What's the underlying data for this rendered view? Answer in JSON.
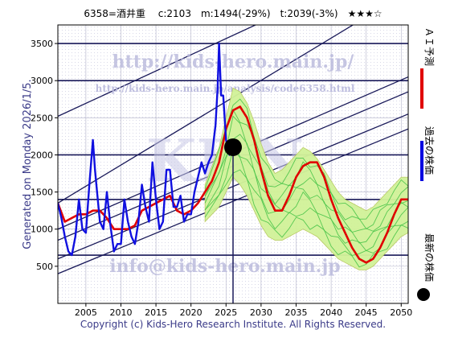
{
  "header": {
    "title": "6358=酒井重　 c:2103　m:1494(-29%)　t:2039(-3%)　★★★☆"
  },
  "watermarks": {
    "url_big": "http://kids-hero.main.jp/",
    "url_small": "http://kids-hero.main.jp/analysis/code6358.html",
    "big": "KHN",
    "email": "info@kids-hero.main.jp"
  },
  "side_label": "Generated on Monday 2026/1/5.",
  "copyright": "Copyright (c) Kids-Hero Research Institute. All Rights Reserved.",
  "legend": {
    "items": [
      {
        "label": "ＡＩ予測",
        "color": "#e00000"
      },
      {
        "label": "過去の株価",
        "color": "#0000e0"
      },
      {
        "label": "最新の株価",
        "color": "#000000"
      }
    ]
  },
  "colors": {
    "price": "#1010e0",
    "forecast": "#e00000",
    "band_fill": "#ffffb0",
    "ensemble": "#40c040",
    "channel": "#1a1a5a"
  },
  "chart_data": {
    "type": "line",
    "xlim": [
      2001,
      2051
    ],
    "ylim": [
      0,
      3750
    ],
    "x_ticks": [
      2005,
      2010,
      2015,
      2020,
      2025,
      2030,
      2035,
      2040,
      2045,
      2050
    ],
    "x_tick_labels": [
      "2005",
      "2010",
      "2015",
      "2020",
      "2025",
      "2030",
      "2035",
      "2040",
      "2045",
      "2050"
    ],
    "y_ticks": [
      500,
      1000,
      1500,
      2000,
      2500,
      3000,
      3500
    ],
    "y_tick_labels": [
      "500",
      "1000",
      "1500",
      "2000",
      "2500",
      "3000",
      "3500"
    ],
    "grid": true,
    "latest_point": {
      "x": 2026.0,
      "y": 2103
    },
    "horizontal_lines": [
      650,
      1400,
      2000,
      3000,
      3500
    ],
    "channel_lines": [
      {
        "x1": 2001,
        "y1": 400,
        "x2": 2051,
        "y2": 2350
      },
      {
        "x1": 2001,
        "y1": 600,
        "x2": 2051,
        "y2": 2550
      },
      {
        "x1": 2001,
        "y1": 850,
        "x2": 2051,
        "y2": 2850
      },
      {
        "x1": 2001,
        "y1": 1000,
        "x2": 2051,
        "y2": 3050
      },
      {
        "x1": 2001,
        "y1": 1350,
        "x2": 2051,
        "y2": 4200
      },
      {
        "x1": 2001,
        "y1": 2520,
        "x2": 2051,
        "y2": 4700
      }
    ],
    "series": [
      {
        "name": "過去の株価",
        "x": [
          2001.0,
          2001.5,
          2002.0,
          2002.5,
          2003.0,
          2003.5,
          2004.0,
          2004.5,
          2005.0,
          2005.5,
          2006.0,
          2006.3,
          2006.6,
          2007.0,
          2007.5,
          2008.0,
          2008.5,
          2009.0,
          2009.5,
          2010.0,
          2010.5,
          2011.0,
          2011.5,
          2012.0,
          2012.5,
          2013.0,
          2013.5,
          2014.0,
          2014.5,
          2015.0,
          2015.5,
          2016.0,
          2016.5,
          2017.0,
          2017.5,
          2018.0,
          2018.5,
          2019.0,
          2019.5,
          2020.0,
          2020.5,
          2021.0,
          2021.5,
          2022.0,
          2022.5,
          2023.0,
          2023.5,
          2023.8,
          2024.0,
          2024.3,
          2024.6,
          2025.0,
          2025.5,
          2026.0
        ],
        "y": [
          1350,
          1150,
          900,
          700,
          650,
          900,
          1400,
          1000,
          950,
          1600,
          2200,
          1800,
          1500,
          1100,
          1000,
          1500,
          1050,
          700,
          800,
          800,
          1400,
          1100,
          900,
          800,
          1100,
          1600,
          1300,
          1100,
          1900,
          1400,
          1000,
          1100,
          1800,
          1800,
          1300,
          1300,
          1450,
          1100,
          1200,
          1200,
          1500,
          1700,
          1900,
          1750,
          1900,
          2000,
          2400,
          2900,
          3500,
          2800,
          2800,
          2200,
          2000,
          2103
        ]
      },
      {
        "name": "ＡＩ予測",
        "x": [
          2001.0,
          2002.0,
          2003.0,
          2004.0,
          2005.0,
          2006.0,
          2007.0,
          2008.0,
          2009.0,
          2010.0,
          2011.0,
          2012.0,
          2013.0,
          2014.0,
          2015.0,
          2016.0,
          2017.0,
          2018.0,
          2019.0,
          2020.0,
          2021.0,
          2022.0,
          2023.0,
          2024.0,
          2025.0,
          2026.0,
          2027.0,
          2028.0,
          2029.0,
          2030.0,
          2031.0,
          2032.0,
          2033.0,
          2034.0,
          2035.0,
          2036.0,
          2037.0,
          2038.0,
          2039.0,
          2040.0,
          2041.0,
          2042.0,
          2043.0,
          2044.0,
          2045.0,
          2046.0,
          2047.0,
          2048.0,
          2049.0,
          2050.0,
          2051.0
        ],
        "y": [
          1350,
          1100,
          1150,
          1200,
          1200,
          1250,
          1250,
          1150,
          1000,
          1000,
          1000,
          1050,
          1250,
          1300,
          1350,
          1400,
          1450,
          1250,
          1200,
          1250,
          1350,
          1500,
          1650,
          1900,
          2350,
          2600,
          2650,
          2500,
          2200,
          1800,
          1450,
          1250,
          1250,
          1450,
          1700,
          1850,
          1900,
          1900,
          1700,
          1400,
          1150,
          950,
          750,
          600,
          550,
          600,
          750,
          950,
          1200,
          1400,
          1400
        ]
      },
      {
        "name": "band_upper",
        "x": [
          2022.0,
          2024.0,
          2025.0,
          2026.0,
          2027.0,
          2028.0,
          2029.0,
          2030.0,
          2031.0,
          2032.0,
          2033.0,
          2034.0,
          2035.0,
          2036.0,
          2037.0,
          2038.0,
          2039.0,
          2040.0,
          2041.0,
          2042.0,
          2043.0,
          2044.0,
          2045.0,
          2046.0,
          2047.0,
          2048.0,
          2049.0,
          2050.0,
          2051.0
        ],
        "y": [
          1600,
          2100,
          2500,
          2900,
          2850,
          2700,
          2450,
          2150,
          1900,
          1750,
          1800,
          1900,
          2000,
          2100,
          2050,
          1950,
          1800,
          1650,
          1500,
          1400,
          1350,
          1300,
          1250,
          1300,
          1400,
          1500,
          1600,
          1700,
          1700
        ]
      },
      {
        "name": "band_lower",
        "x": [
          2022.0,
          2024.0,
          2025.0,
          2026.0,
          2027.0,
          2028.0,
          2029.0,
          2030.0,
          2031.0,
          2032.0,
          2033.0,
          2034.0,
          2035.0,
          2036.0,
          2037.0,
          2038.0,
          2039.0,
          2040.0,
          2041.0,
          2042.0,
          2043.0,
          2044.0,
          2045.0,
          2046.0,
          2047.0,
          2048.0,
          2049.0,
          2050.0,
          2051.0
        ],
        "y": [
          1100,
          1300,
          1500,
          1700,
          1600,
          1450,
          1250,
          1050,
          900,
          850,
          850,
          900,
          950,
          1000,
          950,
          900,
          800,
          700,
          600,
          550,
          500,
          450,
          450,
          500,
          600,
          700,
          800,
          900,
          950
        ]
      }
    ]
  }
}
